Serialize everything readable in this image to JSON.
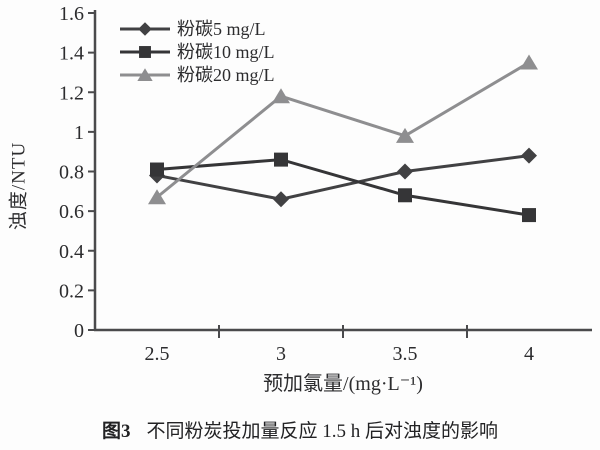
{
  "figure": {
    "caption_prefix": "图3",
    "caption_text": "不同粉炭投加量反应 1.5 h 后对浊度的影响"
  },
  "chart_data": {
    "type": "line",
    "title": "",
    "xlabel": "预加氯量/(mg·L⁻¹)",
    "ylabel": "浊度/NTU",
    "x": [
      2.5,
      3,
      3.5,
      4
    ],
    "x_tick_labels": [
      "2.5",
      "3",
      "3.5",
      "4"
    ],
    "y_ticks": [
      0,
      0.2,
      0.4,
      0.6,
      0.8,
      1,
      1.2,
      1.4,
      1.6
    ],
    "y_tick_labels": [
      "0",
      "0.2",
      "0.4",
      "0.6",
      "0.8",
      "1",
      "1.2",
      "1.4",
      "1.6"
    ],
    "ylim": [
      0,
      1.6
    ],
    "grid": false,
    "legend_position": "top-left",
    "axis_color": "#4a4a4c",
    "series": [
      {
        "name": "粉碳5 mg/L",
        "marker": "diamond",
        "color": "#414143",
        "values": [
          0.78,
          0.66,
          0.8,
          0.88
        ]
      },
      {
        "name": "粉碳10 mg/L",
        "marker": "square",
        "color": "#353537",
        "values": [
          0.81,
          0.86,
          0.68,
          0.58
        ]
      },
      {
        "name": "粉碳20 mg/L",
        "marker": "triangle",
        "color": "#8e8e90",
        "values": [
          0.67,
          1.18,
          0.98,
          1.35
        ]
      }
    ]
  }
}
